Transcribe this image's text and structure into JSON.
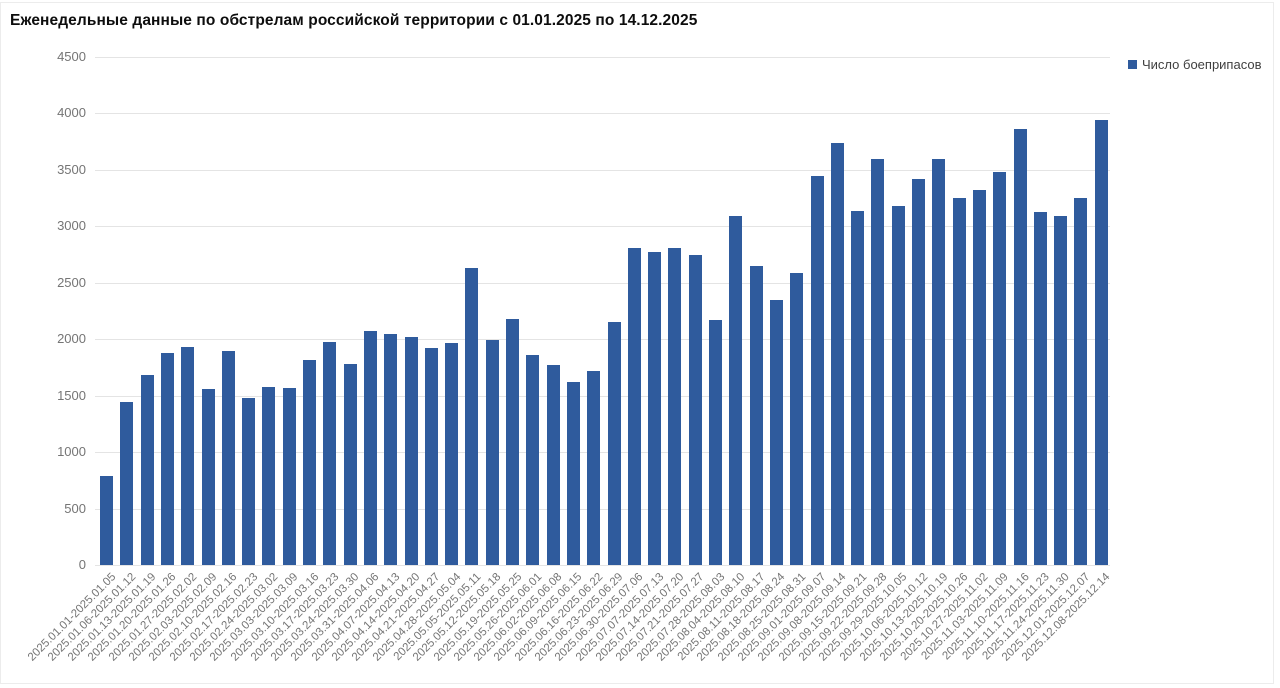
{
  "chart_data": {
    "type": "bar",
    "title": "Еженедельные данные по обстрелам российской территории с 01.01.2025 по 14.12.2025",
    "legend_label": "Число боеприпасов",
    "legend_position": "top-right",
    "grid": true,
    "ylim": [
      0,
      4500
    ],
    "ytick_step": 500,
    "yticks": [
      0,
      500,
      1000,
      1500,
      2000,
      2500,
      3000,
      3500,
      4000,
      4500
    ],
    "xlabel": "",
    "ylabel": "",
    "colors": {
      "bar": "#2f5b9d",
      "gridline": "#e4e4e4",
      "axis_text": "#757575",
      "title_text": "#0d0d0d",
      "legend_text": "#3f3f3f"
    },
    "categories": [
      "2025.01.01-2025.01.05",
      "2025.01.06-2025.01.12",
      "2025.01.13-2025.01.19",
      "2025.01.20-2025.01.26",
      "2025.01.27-2025.02.02",
      "2025.02.03-2025.02.09",
      "2025.02.10-2025.02.16",
      "2025.02.17-2025.02.23",
      "2025.02.24-2025.03.02",
      "2025.03.03-2025.03.09",
      "2025.03.10-2025.03.16",
      "2025.03.17-2025.03.23",
      "2025.03.24-2025.03.30",
      "2025.03.31-2025.04.06",
      "2025.04.07-2025.04.13",
      "2025.04.14-2025.04.20",
      "2025.04.21-2025.04.27",
      "2025.04.28-2025.05.04",
      "2025.05.05-2025.05.11",
      "2025.05.12-2025.05.18",
      "2025.05.19-2025.05.25",
      "2025.05.26-2025.06.01",
      "2025.06.02-2025.06.08",
      "2025.06.09-2025.06.15",
      "2025.06.16-2025.06.22",
      "2025.06.23-2025.06.29",
      "2025.06.30-2025.07.06",
      "2025.07.07-2025.07.13",
      "2025.07.14-2025.07.20",
      "2025.07.21-2025.07.27",
      "2025.07.28-2025.08.03",
      "2025.08.04-2025.08.10",
      "2025.08.11-2025.08.17",
      "2025.08.18-2025.08.24",
      "2025.08.25-2025.08.31",
      "2025.09.01-2025.09.07",
      "2025.09.08-2025.09.14",
      "2025.09.15-2025.09.21",
      "2025.09.22-2025.09.28",
      "2025.09.29-2025.10.05",
      "2025.10.06-2025.10.12",
      "2025.10.13-2025.10.19",
      "2025.10.20-2025.10.26",
      "2025.10.27-2025.11.02",
      "2025.11.03-2025.11.09",
      "2025.11.10-2025.11.16",
      "2025.11.17-2025.11.23",
      "2025.11.24-2025.11.30",
      "2025.12.01-2025.12.07",
      "2025.12.08-2025.12.14"
    ],
    "values": [
      790,
      1440,
      1680,
      1880,
      1930,
      1560,
      1900,
      1480,
      1580,
      1570,
      1820,
      1980,
      1780,
      2070,
      2050,
      2020,
      1920,
      1970,
      2630,
      1990,
      2180,
      1860,
      1770,
      1620,
      1720,
      2150,
      2810,
      2770,
      2810,
      2750,
      2170,
      3090,
      2650,
      2350,
      2590,
      3450,
      3740,
      3140,
      3600,
      3180,
      3420,
      3600,
      3250,
      3320,
      3480,
      3860,
      3130,
      3090,
      3250,
      3940
    ]
  }
}
